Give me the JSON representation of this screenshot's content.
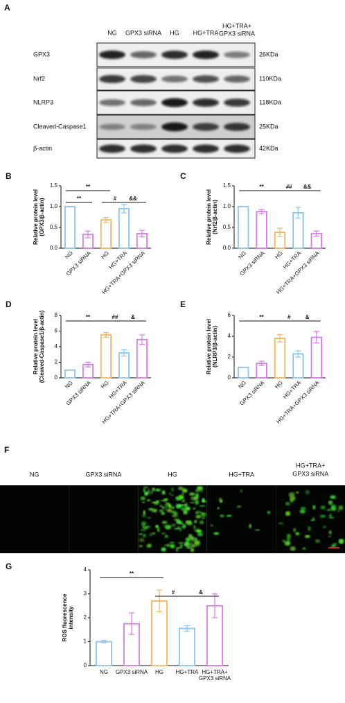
{
  "blot": {
    "panel": "A",
    "columns": [
      "NG",
      "GPX3 siRNA",
      "HG",
      "HG+TRA",
      [
        "HG+TRA+",
        "GPX3 siRNA"
      ]
    ],
    "rows": [
      {
        "protein": "GPX3",
        "size": "26KDa"
      },
      {
        "protein": "Nrf2",
        "size": "110KDa"
      },
      {
        "protein": "NLRP3",
        "size": "118KDa"
      },
      {
        "protein": "Cleaved-Caspase1",
        "size": "25KDa"
      },
      {
        "protein": "β-actin",
        "size": "42KDa"
      }
    ]
  },
  "chart_data": [
    {
      "type": "bar",
      "panel": "B",
      "ylabel": [
        "Relative protein level",
        "(GPX3/β-actin)"
      ],
      "categories": [
        "NG",
        "GPX3 siRNA",
        "HG",
        "HG+TRA",
        "HG+TRA+GPX3 siRNA"
      ],
      "values": [
        1.0,
        0.33,
        0.68,
        0.95,
        0.35
      ],
      "errors": [
        0.0,
        0.08,
        0.06,
        0.1,
        0.08
      ],
      "colors": [
        "#8cc4f0",
        "#d77be6",
        "#f5b45f",
        "#8cc4f0",
        "#d77be6"
      ],
      "ylim": [
        0,
        1.5
      ],
      "yticks": [
        {
          "value": 0,
          "label": "0.0"
        },
        {
          "value": 0.5,
          "label": "0.5"
        },
        {
          "value": 1,
          "label": "1.0"
        },
        {
          "value": 1.5,
          "label": "1.5"
        }
      ],
      "annotations": [
        "**",
        "**",
        "#",
        "&&"
      ]
    },
    {
      "type": "bar",
      "panel": "C",
      "ylabel": [
        "Relative protein level",
        "(Nrf2/β-actin)"
      ],
      "categories": [
        "NG",
        "GPX3 siRNA",
        "HG",
        "HG+TRA",
        "HG+TRA+GPX3 siRNA"
      ],
      "values": [
        1.0,
        0.88,
        0.38,
        0.85,
        0.35
      ],
      "errors": [
        0.0,
        0.05,
        0.1,
        0.13,
        0.06
      ],
      "colors": [
        "#8cc4f0",
        "#d77be6",
        "#f5b45f",
        "#8cc4f0",
        "#d77be6"
      ],
      "ylim": [
        0,
        1.5
      ],
      "yticks": [
        {
          "value": 0,
          "label": "0.0"
        },
        {
          "value": 0.5,
          "label": "0.5"
        },
        {
          "value": 1,
          "label": "1.0"
        },
        {
          "value": 1.5,
          "label": "1.5"
        }
      ],
      "annotations": [
        "**",
        "##",
        "&&"
      ]
    },
    {
      "type": "bar",
      "panel": "D",
      "ylabel": [
        "Relative protein level",
        "(Cleaved-Caspase1/β-actin)"
      ],
      "categories": [
        "NG",
        "GPX3 siRNA",
        "HG",
        "HG+TRA",
        "HG+TRA+GPX3 siRNA"
      ],
      "values": [
        1.0,
        1.7,
        5.5,
        3.2,
        4.9
      ],
      "errors": [
        0.0,
        0.3,
        0.3,
        0.4,
        0.6
      ],
      "colors": [
        "#8cc4f0",
        "#d77be6",
        "#f5b45f",
        "#8cc4f0",
        "#d77be6"
      ],
      "ylim": [
        0,
        8
      ],
      "yticks": [
        0,
        2,
        4,
        6,
        8
      ],
      "annotations": [
        "**",
        "##",
        "&"
      ]
    },
    {
      "type": "bar",
      "panel": "E",
      "ylabel": [
        "Relative protein level",
        "(NLRP3/β-actin)"
      ],
      "categories": [
        "NG",
        "GPX3 siRNA",
        "HG",
        "HG+TRA",
        "HG+TRA+GPX3 siRNA"
      ],
      "values": [
        1.0,
        1.4,
        3.8,
        2.3,
        3.9
      ],
      "errors": [
        0.0,
        0.2,
        0.35,
        0.3,
        0.55
      ],
      "colors": [
        "#8cc4f0",
        "#d77be6",
        "#f5b45f",
        "#8cc4f0",
        "#d77be6"
      ],
      "ylim": [
        0,
        6
      ],
      "yticks": [
        0,
        2,
        4,
        6
      ],
      "annotations": [
        "**",
        "#",
        "&"
      ]
    },
    {
      "type": "bar",
      "panel": "G",
      "ylabel": [
        "ROS fluorescence",
        "intensity"
      ],
      "categories": [
        "NG",
        "GPX3 siRNA",
        "HG",
        "HG+TRA",
        [
          "HG+TRA+",
          "GPX3 siRNA"
        ]
      ],
      "values": [
        1.0,
        1.75,
        2.7,
        1.55,
        2.5
      ],
      "errors": [
        0.05,
        0.45,
        0.45,
        0.12,
        0.5
      ],
      "colors": [
        "#8cc4f0",
        "#d77be6",
        "#f5b45f",
        "#8cc4f0",
        "#d77be6"
      ],
      "ylim": [
        0,
        4
      ],
      "yticks": [
        0,
        1,
        2,
        3,
        4
      ],
      "annotations": [
        "**",
        "#",
        "&"
      ]
    }
  ],
  "fluorescence": {
    "panel": "F",
    "columns": [
      "NG",
      "GPX3 siRNA",
      "HG",
      "HG+TRA",
      [
        "HG+TRA+",
        "GPX3 siRNA"
      ]
    ]
  }
}
